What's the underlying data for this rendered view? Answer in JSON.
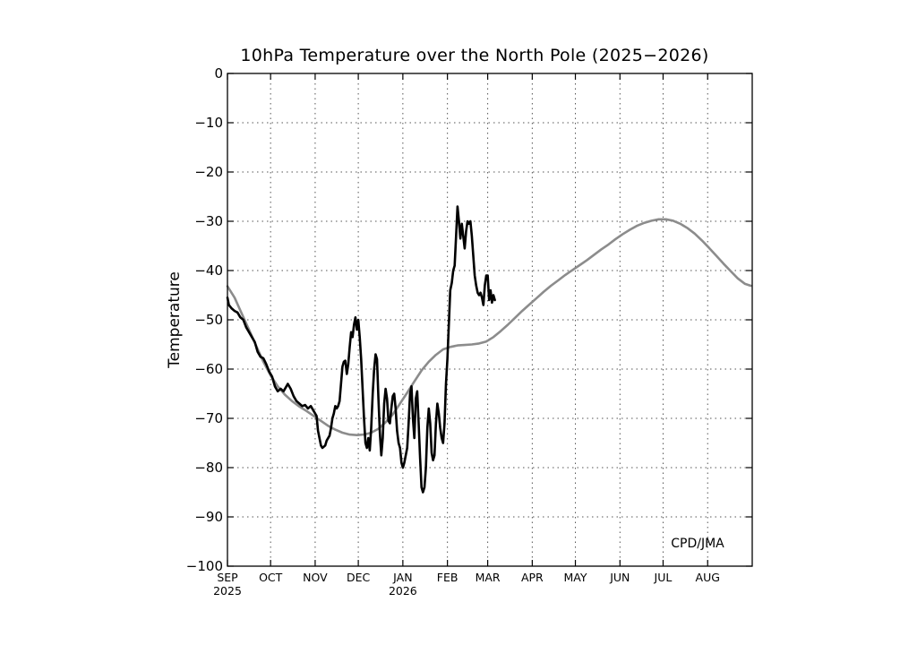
{
  "chart_data": {
    "type": "line",
    "title": "10hPa Temperature over the North Pole (2025−2026)",
    "xlabel": "",
    "ylabel": "Temperature",
    "ylim": [
      -100,
      0
    ],
    "yticks": [
      0,
      -10,
      -20,
      -30,
      -40,
      -50,
      -60,
      -70,
      -80,
      -90,
      -100
    ],
    "ytick_labels": [
      "0",
      "−10",
      "−20",
      "−30",
      "−40",
      "−50",
      "−60",
      "−70",
      "−80",
      "−90",
      "−100"
    ],
    "xlim": [
      "2025-09-01",
      "2026-08-31"
    ],
    "xticks": [
      {
        "date": "2025-09-01",
        "label": "SEP",
        "sub": "2025"
      },
      {
        "date": "2025-10-01",
        "label": "OCT",
        "sub": ""
      },
      {
        "date": "2025-11-01",
        "label": "NOV",
        "sub": ""
      },
      {
        "date": "2025-12-01",
        "label": "DEC",
        "sub": ""
      },
      {
        "date": "2026-01-01",
        "label": "JAN",
        "sub": "2026"
      },
      {
        "date": "2026-02-01",
        "label": "FEB",
        "sub": ""
      },
      {
        "date": "2026-03-01",
        "label": "MAR",
        "sub": ""
      },
      {
        "date": "2026-04-01",
        "label": "APR",
        "sub": ""
      },
      {
        "date": "2026-05-01",
        "label": "MAY",
        "sub": ""
      },
      {
        "date": "2026-06-01",
        "label": "JUN",
        "sub": ""
      },
      {
        "date": "2026-07-01",
        "label": "JUL",
        "sub": ""
      },
      {
        "date": "2026-08-01",
        "label": "AUG",
        "sub": ""
      }
    ],
    "grid": true,
    "annotation": "CPD/JMA",
    "colors": {
      "observed": "#000000",
      "climatology": "#8c8c8c",
      "grid": "#555555"
    },
    "series": [
      {
        "key": "climatology",
        "points": [
          [
            "2025-09-01",
            -43.2
          ],
          [
            "2025-09-06",
            -45.5
          ],
          [
            "2025-09-11",
            -48.8
          ],
          [
            "2025-09-16",
            -52.0
          ],
          [
            "2025-09-21",
            -55.3
          ],
          [
            "2025-09-26",
            -58.5
          ],
          [
            "2025-10-01",
            -61.3
          ],
          [
            "2025-10-06",
            -63.5
          ],
          [
            "2025-10-11",
            -65.2
          ],
          [
            "2025-10-16",
            -66.5
          ],
          [
            "2025-10-21",
            -67.6
          ],
          [
            "2025-10-26",
            -68.5
          ],
          [
            "2025-10-31",
            -69.5
          ],
          [
            "2025-11-05",
            -70.5
          ],
          [
            "2025-11-10",
            -71.5
          ],
          [
            "2025-11-15",
            -72.3
          ],
          [
            "2025-11-20",
            -72.9
          ],
          [
            "2025-11-25",
            -73.3
          ],
          [
            "2025-11-30",
            -73.4
          ],
          [
            "2025-12-05",
            -73.3
          ],
          [
            "2025-12-10",
            -72.9
          ],
          [
            "2025-12-15",
            -72.1
          ],
          [
            "2025-12-20",
            -70.8
          ],
          [
            "2025-12-25",
            -69.2
          ],
          [
            "2025-12-30",
            -67.0
          ],
          [
            "2026-01-04",
            -64.8
          ],
          [
            "2026-01-09",
            -62.5
          ],
          [
            "2026-01-14",
            -60.3
          ],
          [
            "2026-01-19",
            -58.5
          ],
          [
            "2026-01-24",
            -57.1
          ],
          [
            "2026-01-29",
            -56.0
          ],
          [
            "2026-02-03",
            -55.5
          ],
          [
            "2026-02-08",
            -55.2
          ],
          [
            "2026-02-13",
            -55.1
          ],
          [
            "2026-02-18",
            -55.0
          ],
          [
            "2026-02-23",
            -54.8
          ],
          [
            "2026-02-28",
            -54.4
          ],
          [
            "2026-03-05",
            -53.5
          ],
          [
            "2026-03-10",
            -52.3
          ],
          [
            "2026-03-15",
            -51.0
          ],
          [
            "2026-03-20",
            -49.6
          ],
          [
            "2026-03-25",
            -48.2
          ],
          [
            "2026-03-30",
            -46.9
          ],
          [
            "2026-04-04",
            -45.6
          ],
          [
            "2026-04-09",
            -44.3
          ],
          [
            "2026-04-14",
            -43.1
          ],
          [
            "2026-04-19",
            -42.0
          ],
          [
            "2026-04-24",
            -40.9
          ],
          [
            "2026-04-29",
            -39.9
          ],
          [
            "2026-05-04",
            -38.9
          ],
          [
            "2026-05-09",
            -37.9
          ],
          [
            "2026-05-14",
            -36.8
          ],
          [
            "2026-05-19",
            -35.7
          ],
          [
            "2026-05-24",
            -34.7
          ],
          [
            "2026-05-29",
            -33.6
          ],
          [
            "2026-06-03",
            -32.6
          ],
          [
            "2026-06-08",
            -31.7
          ],
          [
            "2026-06-13",
            -30.9
          ],
          [
            "2026-06-18",
            -30.3
          ],
          [
            "2026-06-23",
            -29.9
          ],
          [
            "2026-06-28",
            -29.6
          ],
          [
            "2026-07-03",
            -29.6
          ],
          [
            "2026-07-08",
            -29.9
          ],
          [
            "2026-07-13",
            -30.5
          ],
          [
            "2026-07-18",
            -31.4
          ],
          [
            "2026-07-23",
            -32.5
          ],
          [
            "2026-07-28",
            -33.9
          ],
          [
            "2026-08-02",
            -35.4
          ],
          [
            "2026-08-07",
            -37.0
          ],
          [
            "2026-08-12",
            -38.6
          ],
          [
            "2026-08-17",
            -40.1
          ],
          [
            "2026-08-22",
            -41.6
          ],
          [
            "2026-08-27",
            -42.7
          ],
          [
            "2026-08-31",
            -43.1
          ]
        ]
      },
      {
        "key": "observed",
        "points": [
          [
            "2025-09-01",
            -45.5
          ],
          [
            "2025-09-02",
            -47.0
          ],
          [
            "2025-09-04",
            -47.7
          ],
          [
            "2025-09-06",
            -48.2
          ],
          [
            "2025-09-08",
            -48.5
          ],
          [
            "2025-09-10",
            -49.5
          ],
          [
            "2025-09-12",
            -50.0
          ],
          [
            "2025-09-14",
            -51.5
          ],
          [
            "2025-09-16",
            -52.5
          ],
          [
            "2025-09-18",
            -53.5
          ],
          [
            "2025-09-20",
            -54.5
          ],
          [
            "2025-09-22",
            -56.5
          ],
          [
            "2025-09-24",
            -57.5
          ],
          [
            "2025-09-26",
            -57.8
          ],
          [
            "2025-09-28",
            -59.0
          ],
          [
            "2025-09-30",
            -60.5
          ],
          [
            "2025-10-02",
            -61.5
          ],
          [
            "2025-10-04",
            -63.5
          ],
          [
            "2025-10-06",
            -64.5
          ],
          [
            "2025-10-08",
            -64.0
          ],
          [
            "2025-10-10",
            -64.5
          ],
          [
            "2025-10-12",
            -63.5
          ],
          [
            "2025-10-13",
            -63.0
          ],
          [
            "2025-10-15",
            -64.0
          ],
          [
            "2025-10-17",
            -65.5
          ],
          [
            "2025-10-19",
            -66.5
          ],
          [
            "2025-10-21",
            -67.0
          ],
          [
            "2025-10-23",
            -67.5
          ],
          [
            "2025-10-25",
            -67.3
          ],
          [
            "2025-10-27",
            -68.0
          ],
          [
            "2025-10-29",
            -67.5
          ],
          [
            "2025-10-31",
            -68.5
          ],
          [
            "2025-11-02",
            -69.5
          ],
          [
            "2025-11-03",
            -72.5
          ],
          [
            "2025-11-05",
            -75.5
          ],
          [
            "2025-11-06",
            -76.0
          ],
          [
            "2025-11-08",
            -75.5
          ],
          [
            "2025-11-09",
            -74.5
          ],
          [
            "2025-11-11",
            -73.5
          ],
          [
            "2025-11-12",
            -72.0
          ],
          [
            "2025-11-13",
            -70.0
          ],
          [
            "2025-11-14",
            -69.0
          ],
          [
            "2025-11-15",
            -67.5
          ],
          [
            "2025-11-16",
            -68.0
          ],
          [
            "2025-11-17",
            -67.5
          ],
          [
            "2025-11-18",
            -66.5
          ],
          [
            "2025-11-19",
            -63.0
          ],
          [
            "2025-11-20",
            -59.5
          ],
          [
            "2025-11-21",
            -58.5
          ],
          [
            "2025-11-22",
            -58.3
          ],
          [
            "2025-11-23",
            -61.0
          ],
          [
            "2025-11-24",
            -59.0
          ],
          [
            "2025-11-25",
            -55.5
          ],
          [
            "2025-11-26",
            -52.5
          ],
          [
            "2025-11-27",
            -53.5
          ],
          [
            "2025-11-28",
            -51.0
          ],
          [
            "2025-11-29",
            -49.5
          ],
          [
            "2025-11-30",
            -52.0
          ],
          [
            "2025-12-01",
            -50.0
          ],
          [
            "2025-12-02",
            -53.5
          ],
          [
            "2025-12-03",
            -58.0
          ],
          [
            "2025-12-04",
            -64.0
          ],
          [
            "2025-12-05",
            -70.0
          ],
          [
            "2025-12-06",
            -75.0
          ],
          [
            "2025-12-07",
            -76.0
          ],
          [
            "2025-12-08",
            -74.0
          ],
          [
            "2025-12-09",
            -76.5
          ],
          [
            "2025-12-10",
            -72.0
          ],
          [
            "2025-12-11",
            -65.0
          ],
          [
            "2025-12-12",
            -60.0
          ],
          [
            "2025-12-13",
            -57.0
          ],
          [
            "2025-12-14",
            -58.0
          ],
          [
            "2025-12-15",
            -66.0
          ],
          [
            "2025-12-16",
            -73.0
          ],
          [
            "2025-12-17",
            -77.5
          ],
          [
            "2025-12-18",
            -74.0
          ],
          [
            "2025-12-19",
            -67.0
          ],
          [
            "2025-12-20",
            -64.0
          ],
          [
            "2025-12-21",
            -66.0
          ],
          [
            "2025-12-22",
            -70.5
          ],
          [
            "2025-12-23",
            -71.0
          ],
          [
            "2025-12-24",
            -68.0
          ],
          [
            "2025-12-25",
            -65.5
          ],
          [
            "2025-12-26",
            -65.0
          ],
          [
            "2025-12-27",
            -68.0
          ],
          [
            "2025-12-28",
            -72.5
          ],
          [
            "2025-12-29",
            -75.0
          ],
          [
            "2025-12-30",
            -76.0
          ],
          [
            "2025-12-31",
            -79.0
          ],
          [
            "2026-01-01",
            -80.0
          ],
          [
            "2026-01-02",
            -79.0
          ],
          [
            "2026-01-03",
            -77.5
          ],
          [
            "2026-01-04",
            -76.0
          ],
          [
            "2026-01-05",
            -71.0
          ],
          [
            "2026-01-06",
            -65.0
          ],
          [
            "2026-01-07",
            -63.5
          ],
          [
            "2026-01-08",
            -70.0
          ],
          [
            "2026-01-09",
            -74.0
          ],
          [
            "2026-01-10",
            -66.0
          ],
          [
            "2026-01-11",
            -64.5
          ],
          [
            "2026-01-12",
            -71.0
          ],
          [
            "2026-01-13",
            -78.0
          ],
          [
            "2026-01-14",
            -84.0
          ],
          [
            "2026-01-15",
            -85.0
          ],
          [
            "2026-01-16",
            -84.0
          ],
          [
            "2026-01-17",
            -80.0
          ],
          [
            "2026-01-18",
            -72.0
          ],
          [
            "2026-01-19",
            -68.0
          ],
          [
            "2026-01-20",
            -71.0
          ],
          [
            "2026-01-21",
            -77.0
          ],
          [
            "2026-01-22",
            -78.5
          ],
          [
            "2026-01-23",
            -77.5
          ],
          [
            "2026-01-24",
            -71.0
          ],
          [
            "2026-01-25",
            -67.0
          ],
          [
            "2026-01-26",
            -69.0
          ],
          [
            "2026-01-27",
            -72.0
          ],
          [
            "2026-01-28",
            -74.0
          ],
          [
            "2026-01-29",
            -75.0
          ],
          [
            "2026-01-30",
            -71.0
          ],
          [
            "2026-01-31",
            -63.0
          ],
          [
            "2026-02-01",
            -58.0
          ],
          [
            "2026-02-02",
            -51.0
          ],
          [
            "2026-02-03",
            -44.0
          ],
          [
            "2026-02-04",
            -42.5
          ],
          [
            "2026-02-05",
            -40.0
          ],
          [
            "2026-02-06",
            -39.0
          ],
          [
            "2026-02-07",
            -33.0
          ],
          [
            "2026-02-08",
            -27.0
          ],
          [
            "2026-02-09",
            -30.0
          ],
          [
            "2026-02-10",
            -33.5
          ],
          [
            "2026-02-11",
            -30.5
          ],
          [
            "2026-02-12",
            -33.0
          ],
          [
            "2026-02-13",
            -35.5
          ],
          [
            "2026-02-14",
            -32.0
          ],
          [
            "2026-02-15",
            -30.0
          ],
          [
            "2026-02-16",
            -30.5
          ],
          [
            "2026-02-17",
            -30.0
          ],
          [
            "2026-02-18",
            -33.0
          ],
          [
            "2026-02-19",
            -37.0
          ],
          [
            "2026-02-20",
            -41.0
          ],
          [
            "2026-02-21",
            -43.0
          ],
          [
            "2026-02-22",
            -44.5
          ],
          [
            "2026-02-23",
            -45.0
          ],
          [
            "2026-02-24",
            -44.5
          ],
          [
            "2026-02-25",
            -45.5
          ],
          [
            "2026-02-26",
            -47.0
          ],
          [
            "2026-02-27",
            -43.0
          ],
          [
            "2026-02-28",
            -41.0
          ],
          [
            "2026-03-01",
            -41.0
          ],
          [
            "2026-03-02",
            -46.0
          ],
          [
            "2026-03-03",
            -44.0
          ],
          [
            "2026-03-04",
            -46.5
          ],
          [
            "2026-03-05",
            -45.0
          ],
          [
            "2026-03-06",
            -46.0
          ]
        ]
      }
    ]
  }
}
